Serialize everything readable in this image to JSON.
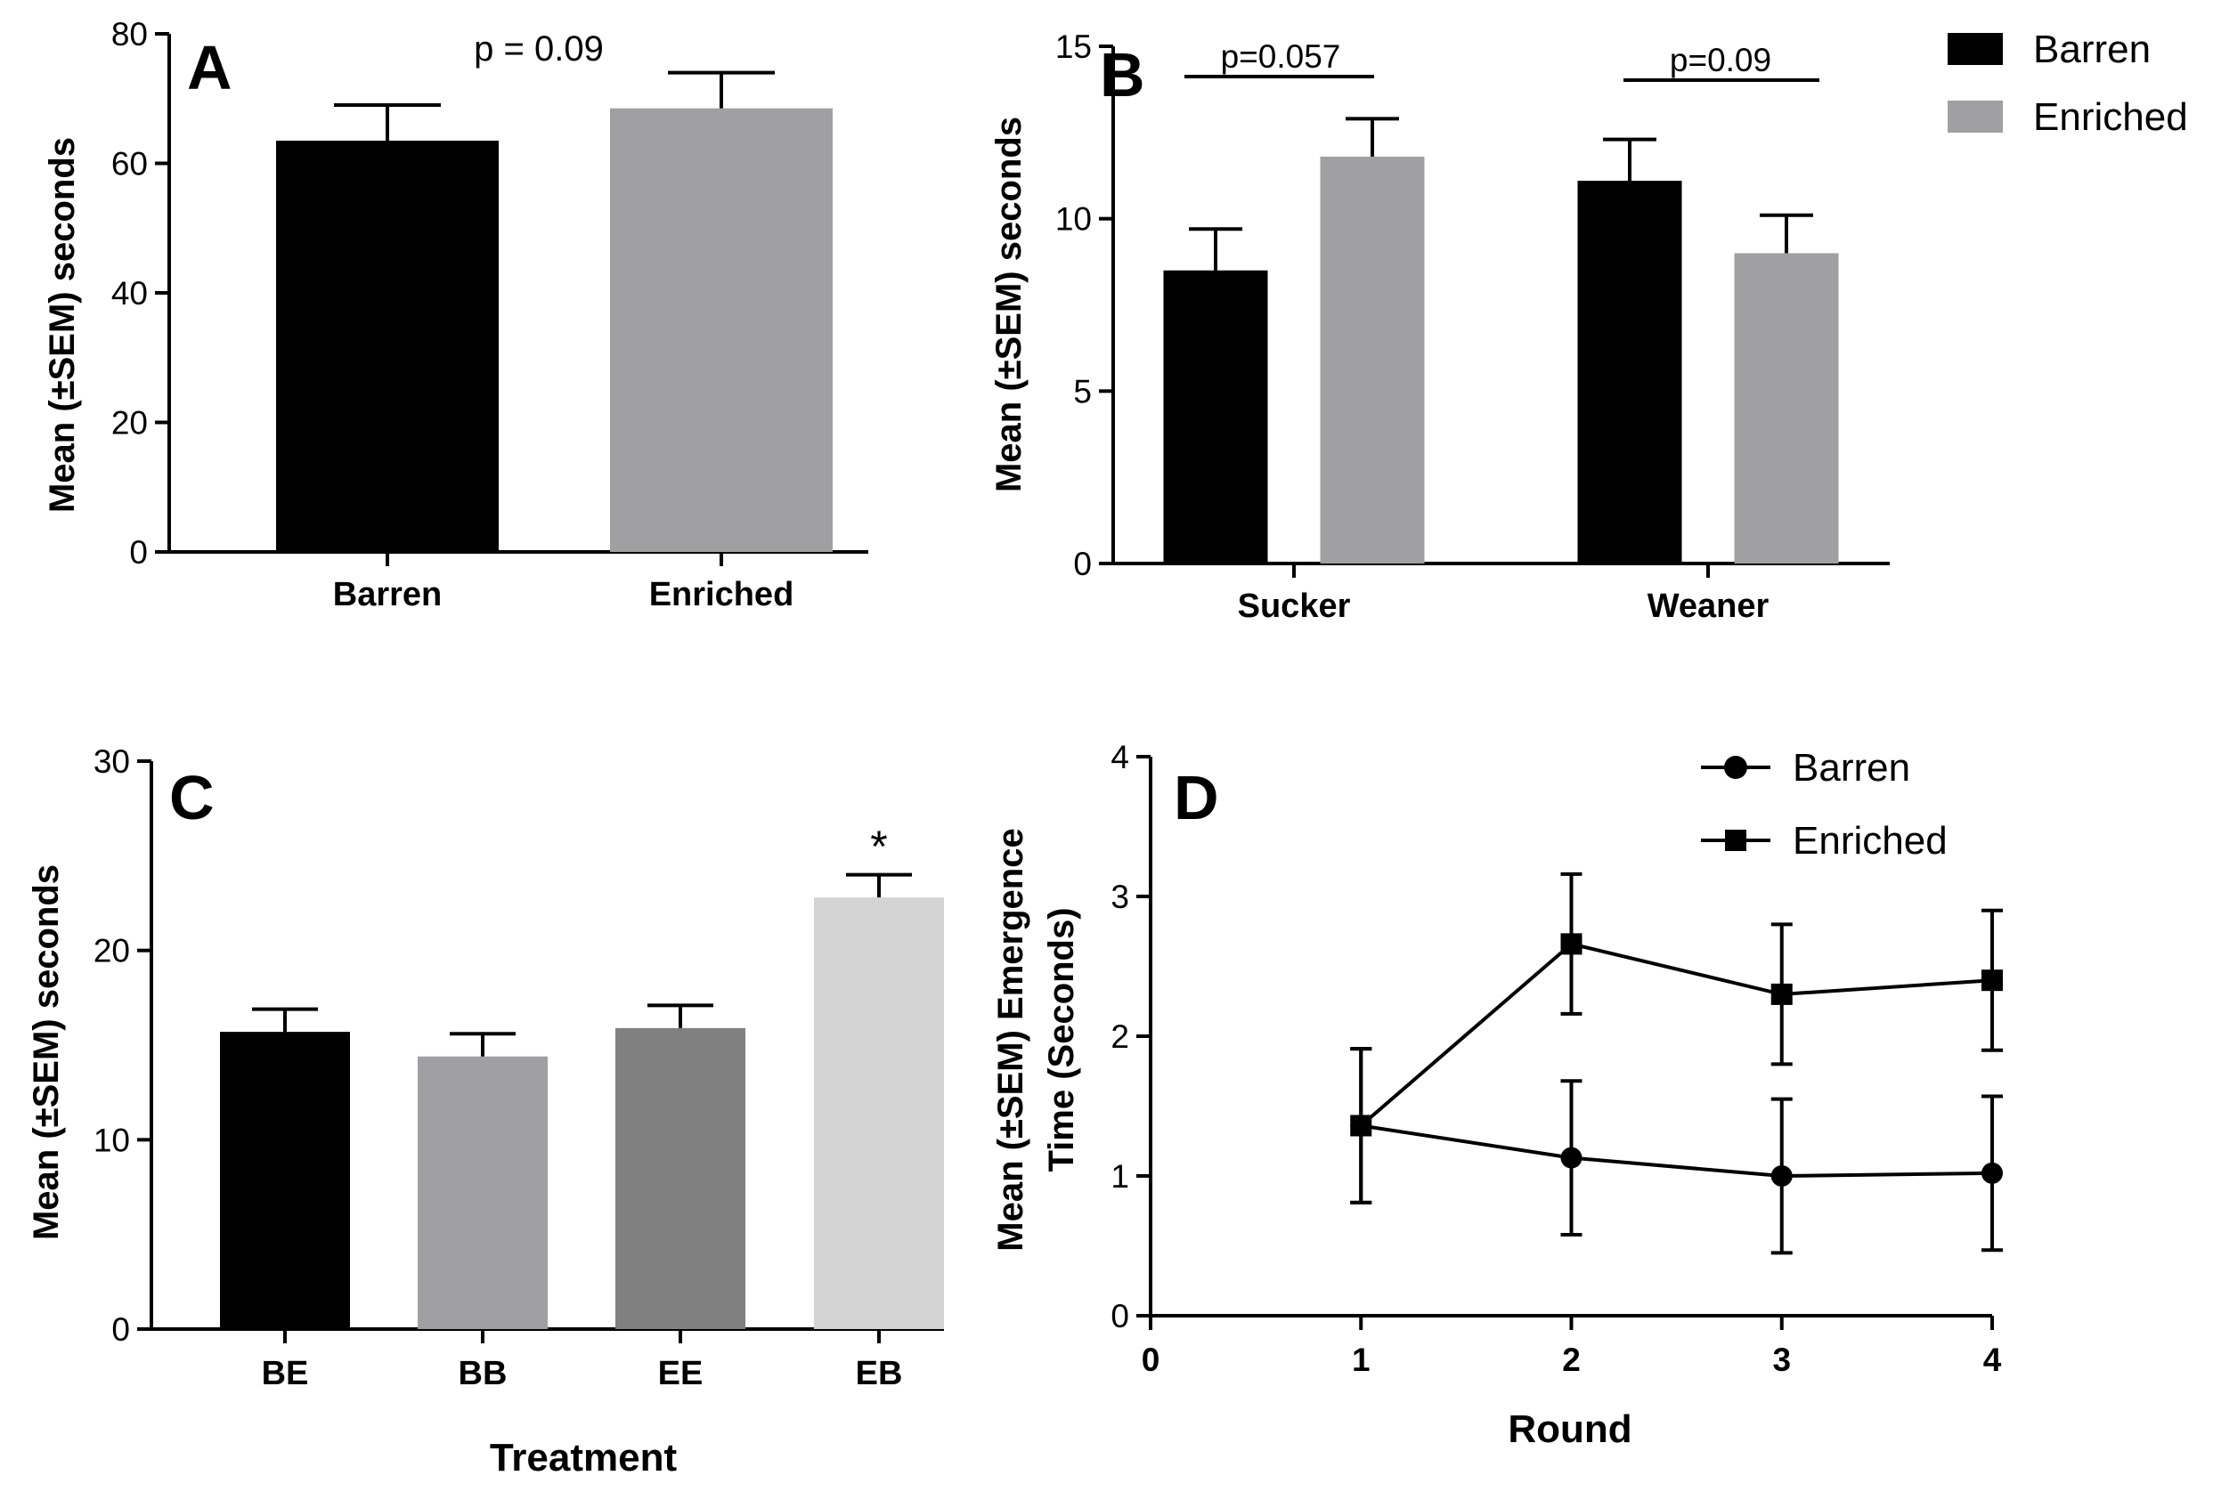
{
  "chart_data": [
    {
      "panel": "A",
      "type": "bar",
      "categories": [
        "Barren",
        "Enriched"
      ],
      "values": [
        63.5,
        68.5
      ],
      "errors": [
        5.5,
        5.5
      ],
      "colors": [
        "#000000",
        "#a0a0a2"
      ],
      "ylabel": "Mean (±SEM) seconds",
      "ylim": [
        0,
        80
      ],
      "yticks": [
        0,
        20,
        40,
        60,
        80
      ],
      "annotation": "p = 0.09"
    },
    {
      "panel": "B",
      "type": "bar",
      "categories": [
        "Sucker",
        "Weaner"
      ],
      "series": [
        {
          "name": "Barren",
          "color": "#000000",
          "values": [
            8.5,
            11.1
          ],
          "errors": [
            1.2,
            1.2
          ]
        },
        {
          "name": "Enriched",
          "color": "#a0a0a2",
          "values": [
            11.8,
            9.0
          ],
          "errors": [
            1.1,
            1.1
          ]
        }
      ],
      "ylabel": "Mean (±SEM) seconds",
      "ylim": [
        0,
        15
      ],
      "yticks": [
        0,
        5,
        10,
        15
      ],
      "annotations": [
        "p=0.057",
        "p=0.09"
      ],
      "legend_position": "top-right"
    },
    {
      "panel": "C",
      "type": "bar",
      "categories": [
        "BE",
        "BB",
        "EE",
        "EB"
      ],
      "values": [
        15.7,
        14.4,
        15.9,
        22.8
      ],
      "errors": [
        1.2,
        1.2,
        1.2,
        1.2
      ],
      "colors": [
        "#000000",
        "#a0a0a2",
        "#808080",
        "#d4d4d4"
      ],
      "xlabel": "Treatment",
      "ylabel": "Mean (±SEM) seconds",
      "ylim": [
        0,
        30
      ],
      "yticks": [
        0,
        10,
        20,
        30
      ],
      "significance": "*"
    },
    {
      "panel": "D",
      "type": "line",
      "x": [
        1,
        2,
        3,
        4
      ],
      "series": [
        {
          "name": "Barren",
          "marker": "circle",
          "values": [
            1.36,
            1.13,
            1.0,
            1.02
          ],
          "errors": [
            0.55,
            0.55,
            0.55,
            0.55
          ]
        },
        {
          "name": "Enriched",
          "marker": "square",
          "values": [
            1.36,
            2.66,
            2.3,
            2.4
          ],
          "errors": [
            0.55,
            0.5,
            0.5,
            0.5
          ]
        }
      ],
      "xlabel": "Round",
      "ylabel_line1": "Mean (±SEM) Emergence",
      "ylabel_line2": "Time (Seconds)",
      "xlim": [
        0,
        4
      ],
      "xticks": [
        0,
        1,
        2,
        3,
        4
      ],
      "ylim": [
        0,
        4
      ],
      "yticks": [
        0,
        1,
        2,
        3,
        4
      ],
      "legend_position": "top-right"
    }
  ]
}
